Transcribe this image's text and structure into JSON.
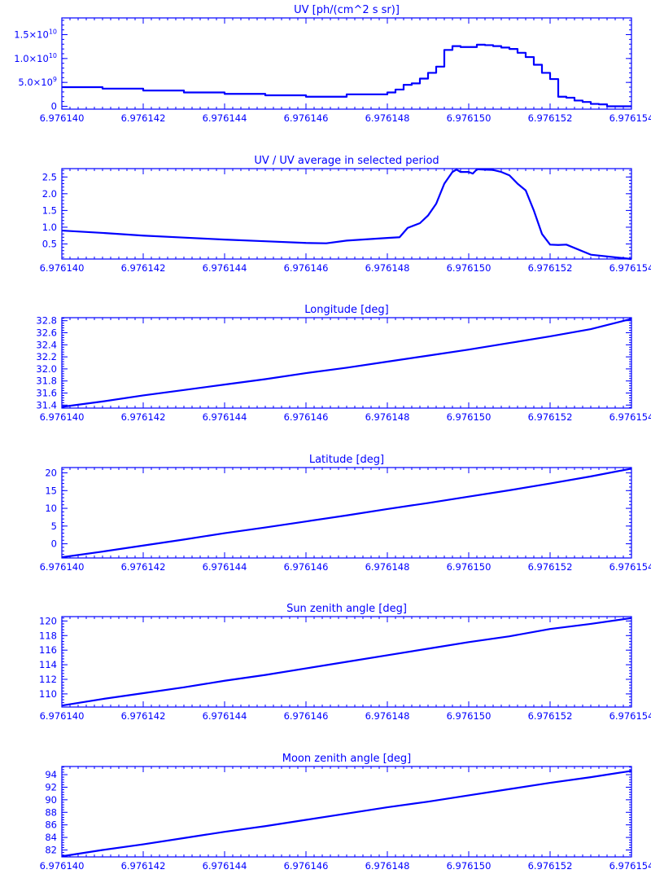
{
  "chart_data": [
    {
      "type": "line",
      "title": "UV [ph/(cm^2 s sr)]",
      "xlabel": "",
      "ylabel": "",
      "xlim": [
        6.97614,
        6.976154
      ],
      "ylim": [
        -600000000,
        18500000000
      ],
      "x_ticks": [
        "6.976140",
        "6.976142",
        "6.976144",
        "6.976146",
        "6.976148",
        "6.976150",
        "6.976152",
        "6.976154"
      ],
      "y_ticks": [
        {
          "value": 0,
          "base": "0",
          "exp": ""
        },
        {
          "value": 5000000000,
          "base": "5.0×10",
          "exp": "9"
        },
        {
          "value": 10000000000,
          "base": "1.0×10",
          "exp": "10"
        },
        {
          "value": 15000000000,
          "base": "1.5×10",
          "exp": "10"
        }
      ],
      "step": true,
      "x": [
        6.97614,
        6.976141,
        6.976142,
        6.976143,
        6.976144,
        6.976145,
        6.976146,
        6.976146,
        6.976147,
        6.976148,
        6.9761482,
        6.9761484,
        6.9761486,
        6.9761488,
        6.976149,
        6.9761492,
        6.9761494,
        6.9761496,
        6.9761498,
        6.97615,
        6.9761502,
        6.9761504,
        6.9761506,
        6.9761508,
        6.976151,
        6.9761512,
        6.9761514,
        6.9761516,
        6.9761518,
        6.976152,
        6.9761522,
        6.9761524,
        6.9761526,
        6.9761528,
        6.976153,
        6.9761532,
        6.9761534,
        6.976154
      ],
      "y": [
        4000000000,
        3700000000,
        3300000000,
        2900000000,
        2600000000,
        2300000000,
        2000000000,
        2000000000,
        2500000000,
        2900000000,
        3500000000,
        4500000000,
        4800000000,
        5800000000,
        7000000000,
        8300000000,
        11800000000,
        12600000000,
        12400000000,
        12400000000,
        12900000000,
        12800000000,
        12600000000,
        12300000000,
        12000000000,
        11200000000,
        10300000000,
        8700000000,
        7000000000,
        5700000000,
        2000000000,
        1800000000,
        1200000000,
        900000000,
        500000000,
        400000000,
        0,
        0
      ]
    },
    {
      "type": "line",
      "title": "UV / UV average in selected period",
      "xlabel": "",
      "ylabel": "",
      "xlim": [
        6.97614,
        6.976154
      ],
      "ylim": [
        0.05,
        2.75
      ],
      "x_ticks": [
        "6.976140",
        "6.976142",
        "6.976144",
        "6.976146",
        "6.976148",
        "6.976150",
        "6.976152",
        "6.976154"
      ],
      "y_ticks": [
        {
          "value": 0.5,
          "base": "0.5",
          "exp": ""
        },
        {
          "value": 1.0,
          "base": "1.0",
          "exp": ""
        },
        {
          "value": 1.5,
          "base": "1.5",
          "exp": ""
        },
        {
          "value": 2.0,
          "base": "2.0",
          "exp": ""
        },
        {
          "value": 2.5,
          "base": "2.5",
          "exp": ""
        }
      ],
      "step": false,
      "x": [
        6.97614,
        6.976141,
        6.976142,
        6.976143,
        6.976144,
        6.976145,
        6.976146,
        6.9761465,
        6.976147,
        6.976148,
        6.9761483,
        6.9761485,
        6.9761488,
        6.976149,
        6.9761492,
        6.9761494,
        6.9761496,
        6.9761497,
        6.9761498,
        6.97615,
        6.9761501,
        6.9761502,
        6.9761504,
        6.9761506,
        6.9761508,
        6.976151,
        6.9761512,
        6.9761514,
        6.9761516,
        6.9761518,
        6.976152,
        6.9761522,
        6.9761524,
        6.976153,
        6.976154
      ],
      "y": [
        0.9,
        0.83,
        0.75,
        0.69,
        0.63,
        0.58,
        0.53,
        0.52,
        0.6,
        0.68,
        0.7,
        0.98,
        1.12,
        1.35,
        1.7,
        2.3,
        2.65,
        2.72,
        2.65,
        2.65,
        2.6,
        2.73,
        2.72,
        2.71,
        2.65,
        2.55,
        2.3,
        2.1,
        1.5,
        0.8,
        0.48,
        0.47,
        0.48,
        0.18,
        0.05
      ]
    },
    {
      "type": "line",
      "title": "Longitude [deg]",
      "xlabel": "",
      "ylabel": "",
      "xlim": [
        6.97614,
        6.976154
      ],
      "ylim": [
        31.35,
        32.85
      ],
      "x_ticks": [
        "6.976140",
        "6.976142",
        "6.976144",
        "6.976146",
        "6.976148",
        "6.976150",
        "6.976152",
        "6.976154"
      ],
      "y_ticks": [
        {
          "value": 31.4,
          "base": "31.4",
          "exp": ""
        },
        {
          "value": 31.6,
          "base": "31.6",
          "exp": ""
        },
        {
          "value": 31.8,
          "base": "31.8",
          "exp": ""
        },
        {
          "value": 32.0,
          "base": "32.0",
          "exp": ""
        },
        {
          "value": 32.2,
          "base": "32.2",
          "exp": ""
        },
        {
          "value": 32.4,
          "base": "32.4",
          "exp": ""
        },
        {
          "value": 32.6,
          "base": "32.6",
          "exp": ""
        },
        {
          "value": 32.8,
          "base": "32.8",
          "exp": ""
        }
      ],
      "step": false,
      "x": [
        6.97614,
        6.976141,
        6.976142,
        6.976143,
        6.976144,
        6.976145,
        6.976146,
        6.976147,
        6.976148,
        6.976149,
        6.97615,
        6.976151,
        6.976152,
        6.976153,
        6.976154
      ],
      "y": [
        31.37,
        31.46,
        31.56,
        31.65,
        31.74,
        31.83,
        31.93,
        32.02,
        32.12,
        32.22,
        32.32,
        32.43,
        32.54,
        32.66,
        32.83
      ]
    },
    {
      "type": "line",
      "title": "Latitude [deg]",
      "xlabel": "",
      "ylabel": "",
      "xlim": [
        6.97614,
        6.976154
      ],
      "ylim": [
        -4.0,
        21.5
      ],
      "x_ticks": [
        "6.976140",
        "6.976142",
        "6.976144",
        "6.976146",
        "6.976148",
        "6.976150",
        "6.976152",
        "6.976154"
      ],
      "y_ticks": [
        {
          "value": 0,
          "base": "0",
          "exp": ""
        },
        {
          "value": 5,
          "base": "5",
          "exp": ""
        },
        {
          "value": 10,
          "base": "10",
          "exp": ""
        },
        {
          "value": 15,
          "base": "15",
          "exp": ""
        },
        {
          "value": 20,
          "base": "20",
          "exp": ""
        }
      ],
      "step": false,
      "x": [
        6.97614,
        6.976141,
        6.976142,
        6.976143,
        6.976144,
        6.976145,
        6.976146,
        6.976147,
        6.976148,
        6.976149,
        6.97615,
        6.976151,
        6.976152,
        6.976153,
        6.976154
      ],
      "y": [
        -3.8,
        -2.2,
        -0.5,
        1.2,
        3.0,
        4.6,
        6.3,
        8.0,
        9.8,
        11.5,
        13.3,
        15.1,
        17.0,
        19.0,
        21.2
      ]
    },
    {
      "type": "line",
      "title": "Sun zenith angle [deg]",
      "xlabel": "",
      "ylabel": "",
      "xlim": [
        6.97614,
        6.976154
      ],
      "ylim": [
        108.2,
        120.6
      ],
      "x_ticks": [
        "6.976140",
        "6.976142",
        "6.976144",
        "6.976146",
        "6.976148",
        "6.976150",
        "6.976152",
        "6.976154"
      ],
      "y_ticks": [
        {
          "value": 110,
          "base": "110",
          "exp": ""
        },
        {
          "value": 112,
          "base": "112",
          "exp": ""
        },
        {
          "value": 114,
          "base": "114",
          "exp": ""
        },
        {
          "value": 116,
          "base": "116",
          "exp": ""
        },
        {
          "value": 118,
          "base": "118",
          "exp": ""
        },
        {
          "value": 120,
          "base": "120",
          "exp": ""
        }
      ],
      "step": false,
      "x": [
        6.97614,
        6.976141,
        6.976142,
        6.976143,
        6.976144,
        6.976145,
        6.976146,
        6.976147,
        6.976148,
        6.976149,
        6.97615,
        6.976151,
        6.976152,
        6.976153,
        6.976154
      ],
      "y": [
        108.4,
        109.3,
        110.1,
        110.9,
        111.8,
        112.6,
        113.5,
        114.4,
        115.3,
        116.2,
        117.1,
        117.9,
        118.9,
        119.6,
        120.4
      ]
    },
    {
      "type": "line",
      "title": "Moon zenith angle [deg]",
      "xlabel": "",
      "ylabel": "",
      "xlim": [
        6.97614,
        6.976154
      ],
      "ylim": [
        80.9,
        95.3
      ],
      "x_ticks": [
        "6.976140",
        "6.976142",
        "6.976144",
        "6.976146",
        "6.976148",
        "6.976150",
        "6.976152",
        "6.976154"
      ],
      "y_ticks": [
        {
          "value": 82,
          "base": "82",
          "exp": ""
        },
        {
          "value": 84,
          "base": "84",
          "exp": ""
        },
        {
          "value": 86,
          "base": "86",
          "exp": ""
        },
        {
          "value": 88,
          "base": "88",
          "exp": ""
        },
        {
          "value": 90,
          "base": "90",
          "exp": ""
        },
        {
          "value": 92,
          "base": "92",
          "exp": ""
        },
        {
          "value": 94,
          "base": "94",
          "exp": ""
        }
      ],
      "step": false,
      "x": [
        6.97614,
        6.976141,
        6.976142,
        6.976143,
        6.976144,
        6.976145,
        6.976146,
        6.976147,
        6.976148,
        6.976149,
        6.97615,
        6.976151,
        6.976152,
        6.976153,
        6.976154
      ],
      "y": [
        81.0,
        82.0,
        82.9,
        83.9,
        84.9,
        85.8,
        86.8,
        87.8,
        88.8,
        89.7,
        90.7,
        91.7,
        92.7,
        93.6,
        94.6
      ]
    }
  ]
}
